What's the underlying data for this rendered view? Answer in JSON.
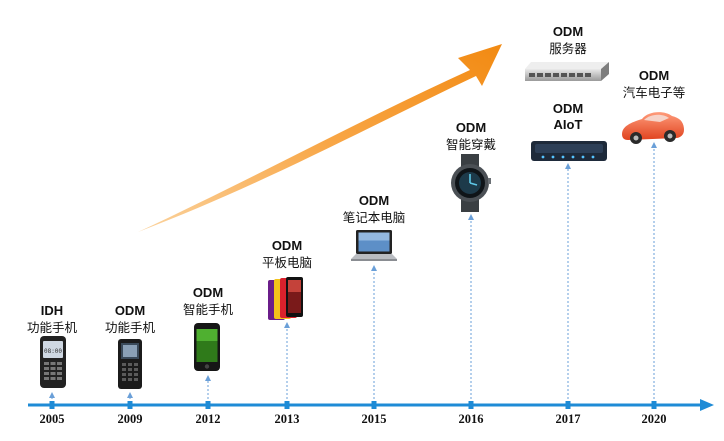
{
  "milestones": [
    {
      "year": "2005",
      "mode": "IDH",
      "product": "功能手机",
      "icon": "feature-phone-icon"
    },
    {
      "year": "2009",
      "mode": "ODM",
      "product": "功能手机",
      "icon": "feature-phone-icon"
    },
    {
      "year": "2012",
      "mode": "ODM",
      "product": "智能手机",
      "icon": "smartphone-icon"
    },
    {
      "year": "2013",
      "mode": "ODM",
      "product": "平板电脑",
      "icon": "tablet-icon"
    },
    {
      "year": "2015",
      "mode": "ODM",
      "product": "笔记本电脑",
      "icon": "laptop-icon"
    },
    {
      "year": "2016",
      "mode": "ODM",
      "product": "智能穿戴",
      "icon": "smartwatch-icon"
    },
    {
      "year": "2017",
      "mode": "ODM",
      "product": "服务器",
      "icon": "server-icon"
    },
    {
      "year": "2017",
      "mode": "ODM",
      "product": "AIoT",
      "icon": "aiot-device-icon"
    },
    {
      "year": "2020",
      "mode": "ODM",
      "product": "汽车电子等",
      "icon": "car-icon"
    }
  ],
  "colors": {
    "axis": "#1e8bd6",
    "arrow": "#f7941d",
    "dashed": "#6a9fd8"
  }
}
